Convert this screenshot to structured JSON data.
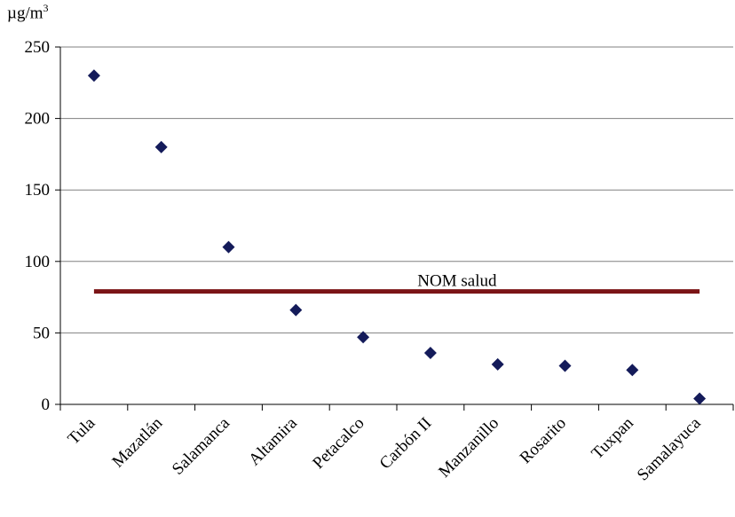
{
  "chart_data": {
    "type": "scatter",
    "unit_label": "µg/m",
    "unit_exponent": "3",
    "categories": [
      "Tula",
      "Mazatlán",
      "Salamanca",
      "Altamira",
      "Petacalco",
      "Carbón II",
      "Manzanillo",
      "Rosarito",
      "Tuxpan",
      "Samalayuca"
    ],
    "values": [
      230,
      180,
      110,
      66,
      47,
      36,
      28,
      27,
      24,
      4
    ],
    "ylim": [
      0,
      250
    ],
    "yticks": [
      0,
      50,
      100,
      150,
      200,
      250
    ],
    "grid": true,
    "reference_line": {
      "label": "NOM salud",
      "value": 79,
      "color": "#7b1416"
    },
    "marker_color": "#141b5a"
  }
}
